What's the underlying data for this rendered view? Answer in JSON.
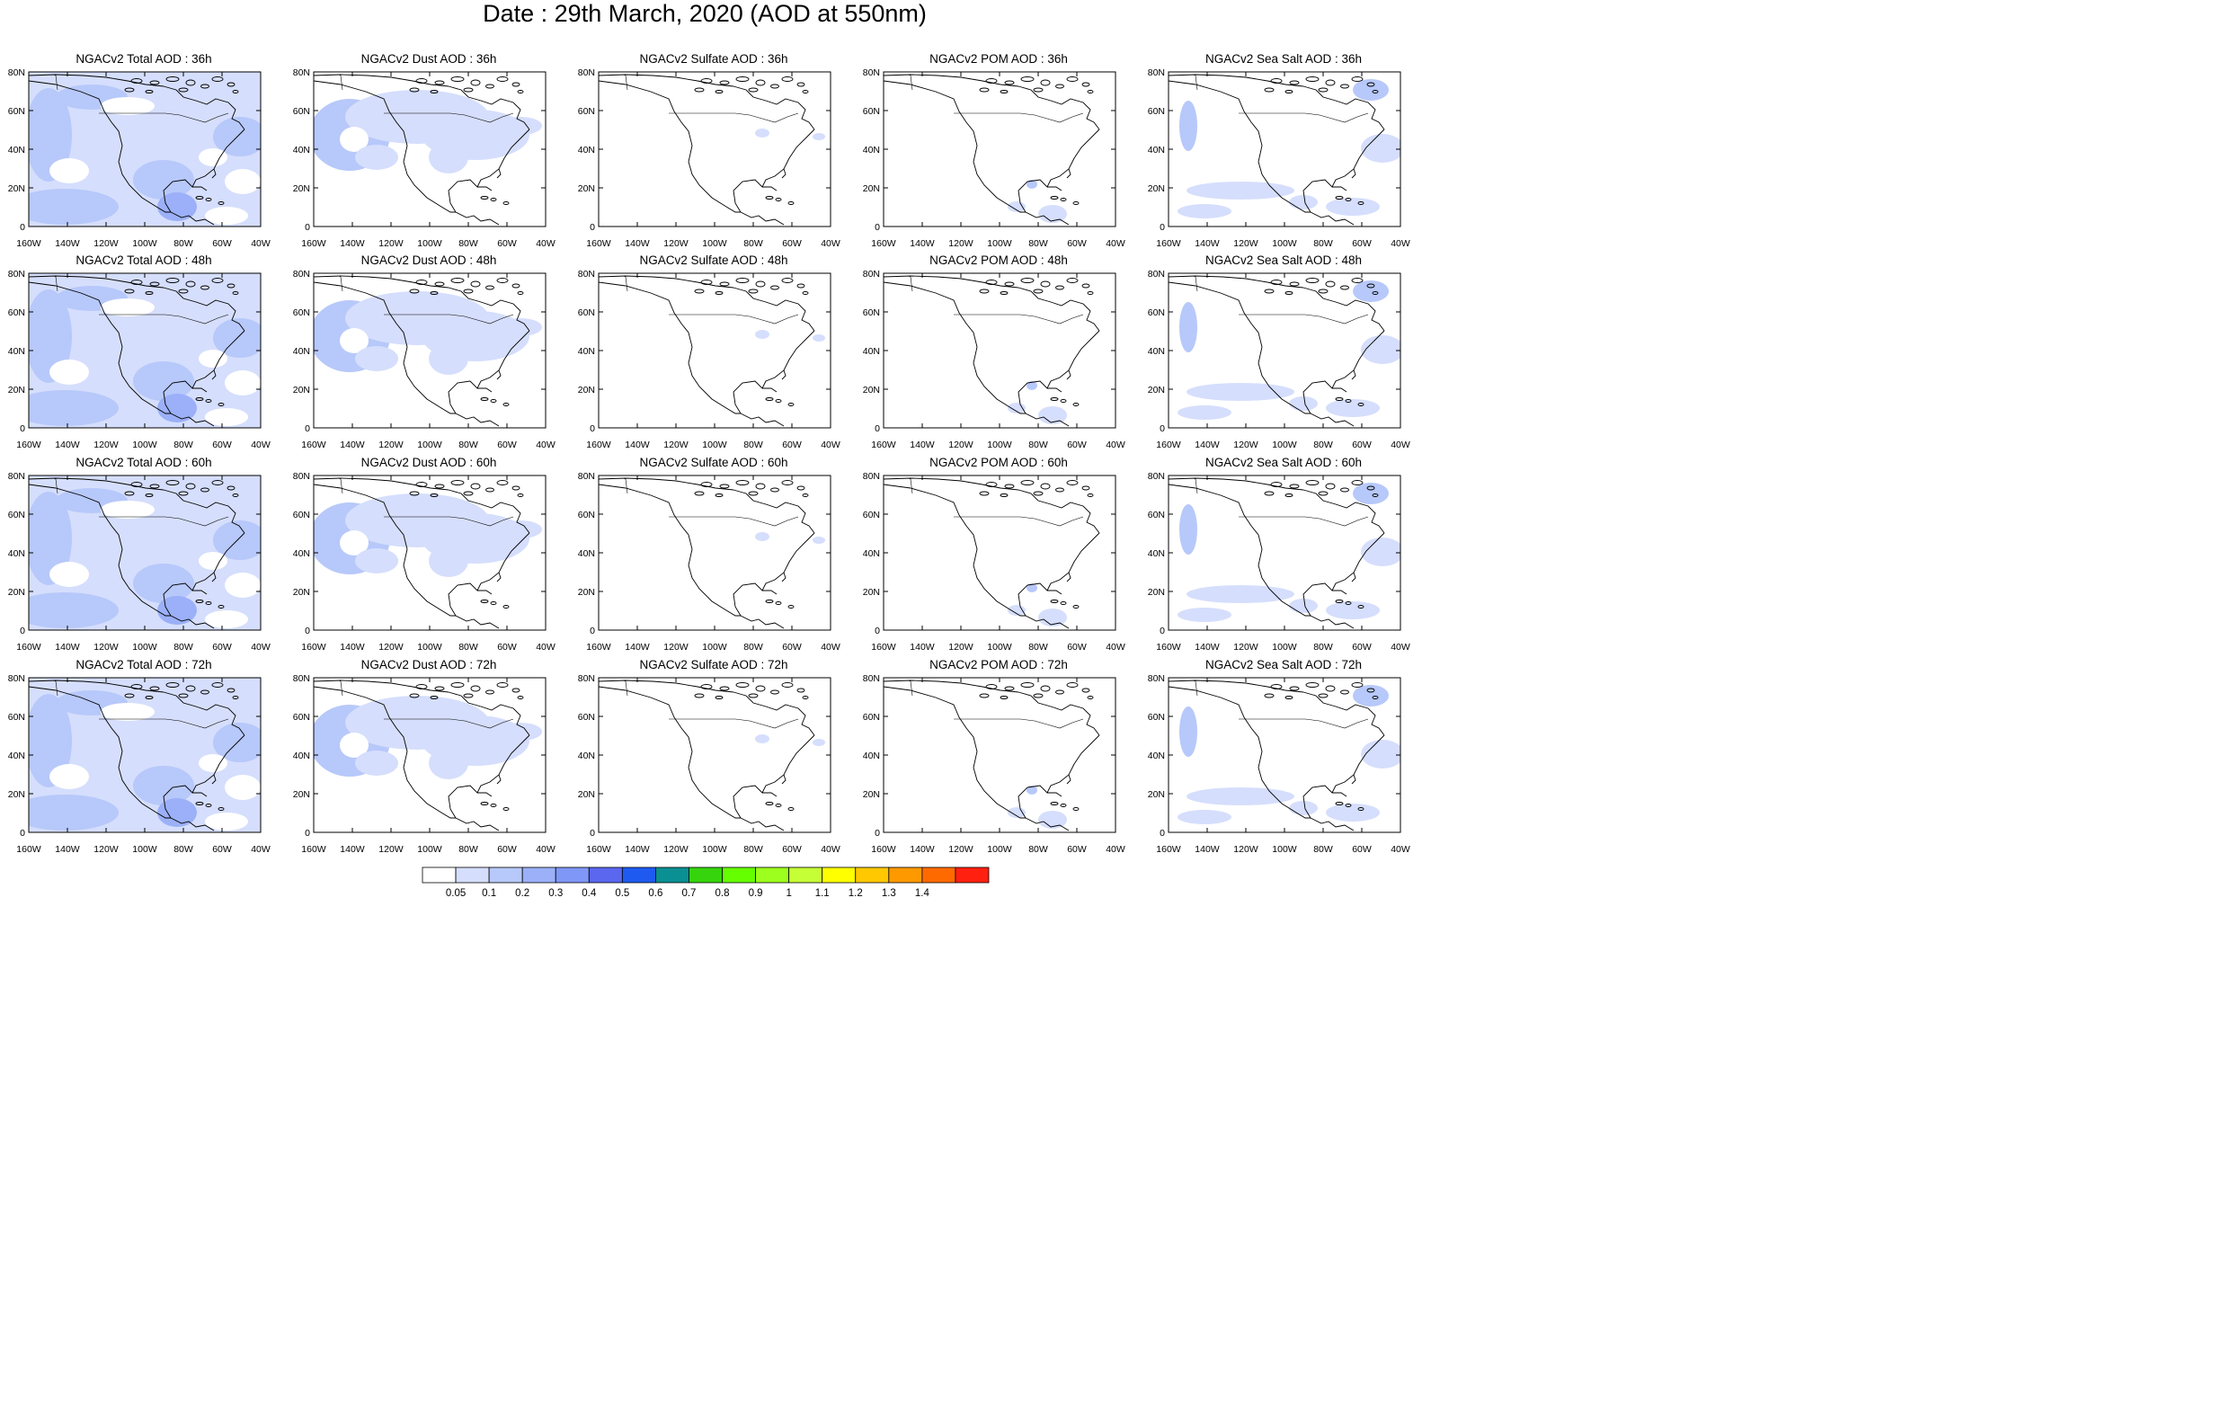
{
  "title": "Date : 29th March, 2020 (AOD at 550nm)",
  "axes": {
    "lon_ticks": [
      "160W",
      "140W",
      "120W",
      "100W",
      "80W",
      "60W",
      "40W"
    ],
    "lat_ticks": [
      "0",
      "20N",
      "40N",
      "60N",
      "80N"
    ],
    "lon_range": [
      -160,
      -40
    ],
    "lat_range": [
      0,
      80
    ]
  },
  "panels": [
    {
      "title": "NGACv2 Total AOD : 36h",
      "field": "total",
      "lead": "36h"
    },
    {
      "title": "NGACv2 Dust AOD : 36h",
      "field": "dust",
      "lead": "36h"
    },
    {
      "title": "NGACv2 Sulfate AOD : 36h",
      "field": "sulfate",
      "lead": "36h"
    },
    {
      "title": "NGACv2 POM AOD : 36h",
      "field": "pom",
      "lead": "36h"
    },
    {
      "title": "NGACv2 Sea Salt AOD : 36h",
      "field": "seasalt",
      "lead": "36h"
    },
    {
      "title": "NGACv2 Total AOD : 48h",
      "field": "total",
      "lead": "48h"
    },
    {
      "title": "NGACv2 Dust AOD : 48h",
      "field": "dust",
      "lead": "48h"
    },
    {
      "title": "NGACv2 Sulfate AOD : 48h",
      "field": "sulfate",
      "lead": "48h"
    },
    {
      "title": "NGACv2 POM AOD : 48h",
      "field": "pom",
      "lead": "48h"
    },
    {
      "title": "NGACv2 Sea Salt AOD : 48h",
      "field": "seasalt",
      "lead": "48h"
    },
    {
      "title": "NGACv2 Total AOD : 60h",
      "field": "total",
      "lead": "60h"
    },
    {
      "title": "NGACv2 Dust AOD : 60h",
      "field": "dust",
      "lead": "60h"
    },
    {
      "title": "NGACv2 Sulfate AOD : 60h",
      "field": "sulfate",
      "lead": "60h"
    },
    {
      "title": "NGACv2 POM AOD : 60h",
      "field": "pom",
      "lead": "60h"
    },
    {
      "title": "NGACv2 Sea Salt AOD : 60h",
      "field": "seasalt",
      "lead": "60h"
    },
    {
      "title": "NGACv2 Total AOD : 72h",
      "field": "total",
      "lead": "72h"
    },
    {
      "title": "NGACv2 Dust AOD : 72h",
      "field": "dust",
      "lead": "72h"
    },
    {
      "title": "NGACv2 Sulfate AOD : 72h",
      "field": "sulfate",
      "lead": "72h"
    },
    {
      "title": "NGACv2 POM AOD : 72h",
      "field": "pom",
      "lead": "72h"
    },
    {
      "title": "NGACv2 Sea Salt  AOD : 72h",
      "field": "seasalt",
      "lead": "72h"
    }
  ],
  "colorbar": {
    "labels": [
      "0.05",
      "0.1",
      "0.2",
      "0.3",
      "0.4",
      "0.5",
      "0.6",
      "0.7",
      "0.8",
      "0.9",
      "1",
      "1.1",
      "1.2",
      "1.3",
      "1.4"
    ],
    "colors": [
      "#ffffff",
      "#d5defc",
      "#b7c8fa",
      "#9bb0f8",
      "#7f97f6",
      "#5a67ee",
      "#1e5af0",
      "#0a8f92",
      "#36d40c",
      "#66ff00",
      "#9dff1d",
      "#c5ff36",
      "#ffff00",
      "#ffc800",
      "#ff9900",
      "#ff6a00",
      "#ff2010"
    ]
  }
}
